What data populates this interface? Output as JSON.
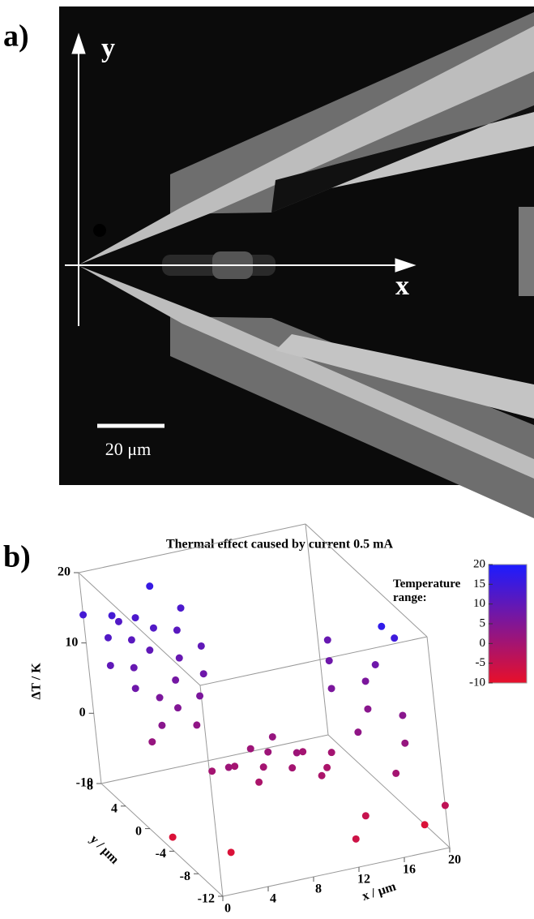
{
  "panel_a": {
    "label": "a)",
    "axis_y": "y",
    "axis_x": "x",
    "scale_bar": "20 μm"
  },
  "chart_data": {
    "type": "scatter3d",
    "panel_label": "b)",
    "title": "Thermal effect caused by current 0.5 mA",
    "x_label": "x / μm",
    "y_label": "y / μm",
    "z_label": "ΔT / K",
    "xlim": [
      0,
      20
    ],
    "xticks": [
      0,
      4,
      8,
      12,
      16,
      20
    ],
    "ylim": [
      -12,
      8
    ],
    "yticks": [
      -12,
      -8,
      -4,
      0,
      4,
      8
    ],
    "zlim": [
      -10,
      20
    ],
    "zticks": [
      -10,
      0,
      10,
      20
    ],
    "colorbar": {
      "label": "Temperature range:",
      "lim": [
        -10,
        20
      ],
      "ticks": [
        -10,
        -5,
        0,
        5,
        10,
        15,
        20
      ],
      "colors": [
        "#e8102a",
        "#1c1cff"
      ]
    },
    "series": [
      {
        "x": [
          1,
          2,
          0,
          1,
          2,
          3,
          3,
          4,
          4,
          5,
          5,
          6,
          6,
          7,
          7,
          8,
          8,
          2,
          4,
          6,
          0,
          1,
          3,
          5,
          4,
          5,
          6,
          7,
          8,
          9,
          10,
          11,
          12,
          13,
          14,
          8,
          10,
          12,
          16,
          17,
          18,
          19,
          20,
          20,
          18,
          16,
          19,
          17,
          19,
          20,
          0,
          3,
          12,
          20,
          19,
          14
        ],
        "y": [
          6,
          7,
          4,
          2,
          4,
          6,
          2,
          5,
          7,
          3,
          6,
          4,
          8,
          2,
          6,
          4,
          7,
          0,
          1,
          1,
          8,
          0,
          8,
          0,
          -4,
          -5,
          -4,
          -6,
          -5,
          -4,
          -6,
          -5,
          -4,
          -6,
          -5,
          -3,
          -3,
          -7,
          -2,
          0,
          -4,
          -2,
          -6,
          -2,
          2,
          -6,
          -8,
          -10,
          -6,
          -6,
          -4,
          -8,
          -12,
          -12,
          -10,
          -10
        ],
        "z": [
          12,
          14,
          10,
          8,
          9,
          11,
          6,
          10,
          13,
          7,
          12,
          9,
          16,
          8,
          11,
          10,
          13,
          4,
          5,
          6,
          14,
          2,
          12,
          3,
          0,
          1,
          0,
          -1,
          0,
          1,
          0,
          1,
          0,
          -1,
          0,
          1,
          2,
          -1,
          6,
          8,
          4,
          6,
          4,
          8,
          9,
          3,
          2,
          0,
          17,
          15,
          -8,
          -8,
          -6,
          -4,
          -8,
          -5
        ]
      }
    ]
  }
}
